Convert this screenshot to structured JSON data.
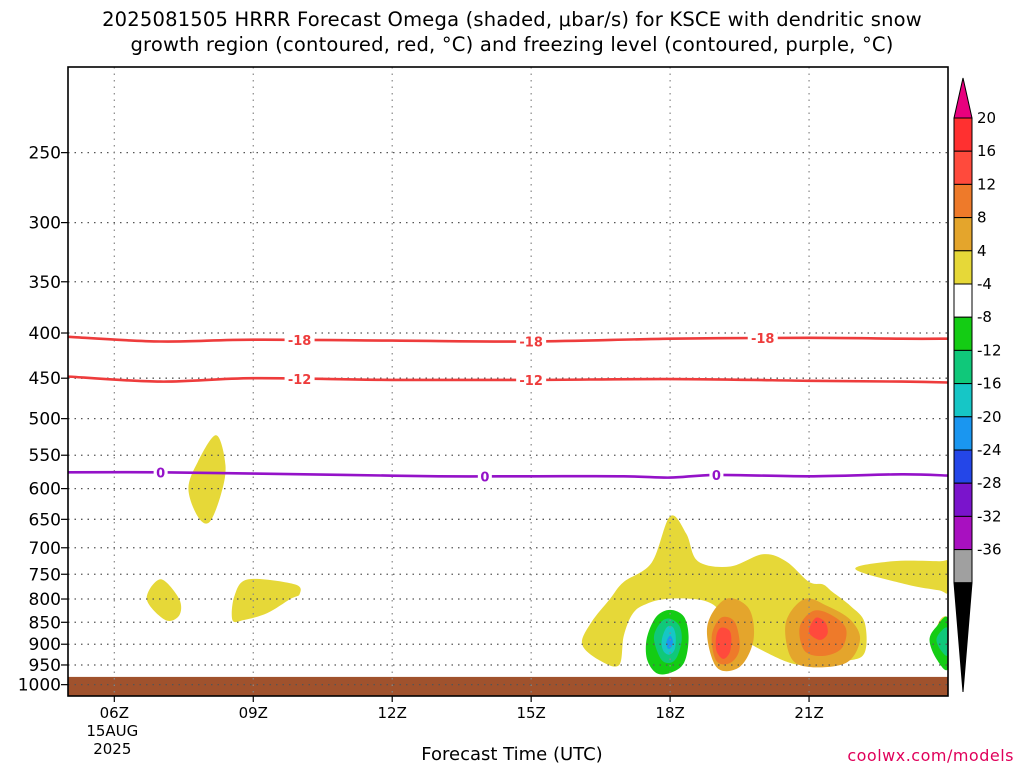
{
  "title": {
    "line1": "2025081505 HRRR Forecast Omega (shaded, μbar/s) for KSCE with dendritic snow",
    "line2": "growth region (contoured, red, °C) and freezing level (contoured, purple, °C)"
  },
  "credit": "coolwx.com/models",
  "chart_data": {
    "type": "heatmap",
    "xlabel": "Forecast Time (UTC)",
    "ylabel": "",
    "x_hours": [
      5,
      24
    ],
    "x_ticks": [
      {
        "hour": 6,
        "label": "06Z",
        "sub": [
          "15AUG",
          "2025"
        ]
      },
      {
        "hour": 9,
        "label": "09Z"
      },
      {
        "hour": 12,
        "label": "12Z"
      },
      {
        "hour": 15,
        "label": "15Z"
      },
      {
        "hour": 18,
        "label": "18Z"
      },
      {
        "hour": 21,
        "label": "21Z"
      }
    ],
    "y_scale": "log-pressure",
    "y_range_hpa": [
      1030,
      200
    ],
    "y_ticks": [
      250,
      300,
      350,
      400,
      450,
      500,
      550,
      600,
      650,
      700,
      750,
      800,
      850,
      900,
      950,
      1000
    ],
    "grid": true,
    "colorbar": {
      "labels": [
        "20",
        "16",
        "12",
        "8",
        "4",
        "-4",
        "-8",
        "-12",
        "-16",
        "-20",
        "-24",
        "-28",
        "-32",
        "-36"
      ],
      "top_color": "#e8007e",
      "colors": [
        "#ff3030",
        "#ff4a3c",
        "#ee7a2a",
        "#e4a52c",
        "#e6d838",
        "#ffffff",
        "#14cc14",
        "#10c87a",
        "#16c6c6",
        "#1a96f0",
        "#2446e8",
        "#7a14cc",
        "#a810c0",
        "#a0a0a0"
      ],
      "bottom_color": "#000000"
    },
    "red_contours": [
      {
        "label": "-18",
        "label_hours": [
          10.0,
          15.0,
          20.0
        ],
        "points": [
          [
            5,
            404
          ],
          [
            7,
            409
          ],
          [
            9,
            407
          ],
          [
            12,
            408
          ],
          [
            15,
            409
          ],
          [
            18,
            406
          ],
          [
            21,
            405
          ],
          [
            23,
            406
          ],
          [
            24,
            406
          ]
        ]
      },
      {
        "label": "-12",
        "label_hours": [
          10.0,
          15.0
        ],
        "points": [
          [
            5,
            448
          ],
          [
            7,
            454
          ],
          [
            9,
            450
          ],
          [
            12,
            452
          ],
          [
            15,
            452
          ],
          [
            18,
            451
          ],
          [
            21,
            453
          ],
          [
            23,
            454
          ],
          [
            24,
            455
          ]
        ]
      }
    ],
    "purple_contours": [
      {
        "label": "0",
        "label_hours": [
          7.0,
          14.0,
          19.0
        ],
        "points": [
          [
            5,
            575
          ],
          [
            7,
            575
          ],
          [
            9,
            577
          ],
          [
            11,
            579
          ],
          [
            13,
            581
          ],
          [
            15,
            581
          ],
          [
            17,
            581
          ],
          [
            18,
            583
          ],
          [
            19,
            579
          ],
          [
            21,
            581
          ],
          [
            23,
            578
          ],
          [
            24,
            580
          ]
        ]
      }
    ],
    "shaded_regions": [
      {
        "color": "#e6d838",
        "points": [
          [
            8.2,
            522
          ],
          [
            8.4,
            565
          ],
          [
            8.3,
            610
          ],
          [
            8.05,
            655
          ],
          [
            7.8,
            645
          ],
          [
            7.6,
            600
          ],
          [
            7.8,
            560
          ]
        ]
      },
      {
        "color": "#e6d838",
        "points": [
          [
            7.0,
            760
          ],
          [
            7.4,
            800
          ],
          [
            7.4,
            835
          ],
          [
            7.1,
            845
          ],
          [
            6.7,
            800
          ]
        ]
      },
      {
        "color": "#e6d838",
        "points": [
          [
            8.6,
            792
          ],
          [
            8.9,
            760
          ],
          [
            9.9,
            770
          ],
          [
            10.0,
            790
          ],
          [
            9.8,
            800
          ],
          [
            9.3,
            830
          ],
          [
            8.8,
            845
          ],
          [
            8.55,
            845
          ]
        ]
      },
      {
        "color": "#e6d838",
        "points": [
          [
            16.1,
            900
          ],
          [
            16.3,
            850
          ],
          [
            16.7,
            800
          ],
          [
            17.0,
            765
          ],
          [
            17.6,
            728
          ],
          [
            18.0,
            645
          ],
          [
            18.35,
            675
          ],
          [
            18.6,
            725
          ],
          [
            19.3,
            735
          ],
          [
            20.0,
            712
          ],
          [
            20.5,
            725
          ],
          [
            21.0,
            765
          ],
          [
            21.3,
            770
          ],
          [
            21.5,
            785
          ],
          [
            21.9,
            815
          ],
          [
            22.2,
            850
          ],
          [
            22.2,
            920
          ],
          [
            21.8,
            940
          ],
          [
            20.8,
            950
          ],
          [
            20.0,
            915
          ],
          [
            19.5,
            880
          ],
          [
            19.2,
            840
          ],
          [
            18.9,
            810
          ],
          [
            18.5,
            800
          ],
          [
            17.9,
            800
          ],
          [
            17.5,
            810
          ],
          [
            17.2,
            830
          ],
          [
            17.0,
            880
          ],
          [
            16.9,
            950
          ],
          [
            16.5,
            940
          ]
        ]
      },
      {
        "color": "#e6d838",
        "points": [
          [
            22.0,
            740
          ],
          [
            22.8,
            725
          ],
          [
            23.8,
            725
          ],
          [
            24,
            728
          ],
          [
            24,
            785
          ],
          [
            23.8,
            782
          ],
          [
            23.1,
            770
          ]
        ]
      },
      {
        "color": "#e6d838",
        "points": [
          [
            23.8,
            850
          ],
          [
            24,
            843
          ],
          [
            24,
            930
          ],
          [
            23.7,
            912
          ]
        ]
      },
      {
        "color": "#e4a52c",
        "points": [
          [
            18.8,
            860
          ],
          [
            19.2,
            800
          ],
          [
            19.7,
            820
          ],
          [
            19.8,
            890
          ],
          [
            19.5,
            955
          ],
          [
            19.0,
            955
          ]
        ]
      },
      {
        "color": "#ee7a2a",
        "points": [
          [
            18.9,
            880
          ],
          [
            19.1,
            840
          ],
          [
            19.4,
            850
          ],
          [
            19.5,
            910
          ],
          [
            19.3,
            945
          ],
          [
            19.0,
            940
          ]
        ]
      },
      {
        "color": "#ff4a3c",
        "points": [
          [
            19.0,
            880
          ],
          [
            19.1,
            862
          ],
          [
            19.3,
            872
          ],
          [
            19.3,
            915
          ],
          [
            19.15,
            935
          ],
          [
            19.0,
            915
          ]
        ]
      },
      {
        "color": "#e4a52c",
        "points": [
          [
            20.5,
            850
          ],
          [
            20.9,
            800
          ],
          [
            21.4,
            815
          ],
          [
            21.9,
            845
          ],
          [
            22.1,
            890
          ],
          [
            21.8,
            945
          ],
          [
            21.0,
            955
          ],
          [
            20.6,
            930
          ]
        ]
      },
      {
        "color": "#ee7a2a",
        "points": [
          [
            20.8,
            860
          ],
          [
            21.1,
            825
          ],
          [
            21.5,
            835
          ],
          [
            21.8,
            865
          ],
          [
            21.7,
            910
          ],
          [
            21.3,
            928
          ],
          [
            20.9,
            915
          ]
        ]
      },
      {
        "color": "#ff4a3c",
        "points": [
          [
            21.0,
            865
          ],
          [
            21.15,
            840
          ],
          [
            21.35,
            850
          ],
          [
            21.4,
            875
          ],
          [
            21.25,
            890
          ],
          [
            21.05,
            880
          ]
        ]
      },
      {
        "color": "#14cc14",
        "points": [
          [
            17.5,
            885
          ],
          [
            17.7,
            838
          ],
          [
            18.0,
            823
          ],
          [
            18.3,
            838
          ],
          [
            18.4,
            885
          ],
          [
            18.3,
            945
          ],
          [
            18.0,
            970
          ],
          [
            17.7,
            970
          ],
          [
            17.5,
            935
          ]
        ]
      },
      {
        "color": "#10c87a",
        "points": [
          [
            17.65,
            885
          ],
          [
            17.8,
            850
          ],
          [
            18.0,
            842
          ],
          [
            18.2,
            858
          ],
          [
            18.25,
            890
          ],
          [
            18.15,
            930
          ],
          [
            18.0,
            945
          ],
          [
            17.8,
            935
          ]
        ]
      },
      {
        "color": "#16c6c6",
        "points": [
          [
            17.82,
            890
          ],
          [
            17.92,
            862
          ],
          [
            18.05,
            860
          ],
          [
            18.12,
            880
          ],
          [
            18.1,
            912
          ],
          [
            17.98,
            925
          ],
          [
            17.85,
            915
          ]
        ]
      },
      {
        "color": "#1a96f0",
        "points": [
          [
            17.92,
            895
          ],
          [
            18.0,
            880
          ],
          [
            18.06,
            893
          ],
          [
            18.02,
            908
          ],
          [
            17.95,
            910
          ]
        ]
      },
      {
        "color": "#14cc14",
        "points": [
          [
            23.6,
            890
          ],
          [
            23.75,
            860
          ],
          [
            24,
            842
          ],
          [
            24,
            958
          ],
          [
            23.75,
            935
          ]
        ]
      },
      {
        "color": "#10c87a",
        "points": [
          [
            23.75,
            890
          ],
          [
            23.85,
            870
          ],
          [
            24,
            865
          ],
          [
            24,
            925
          ],
          [
            23.85,
            915
          ]
        ]
      }
    ],
    "ground": {
      "color": "#a0522d",
      "top_hpa": 980
    }
  }
}
